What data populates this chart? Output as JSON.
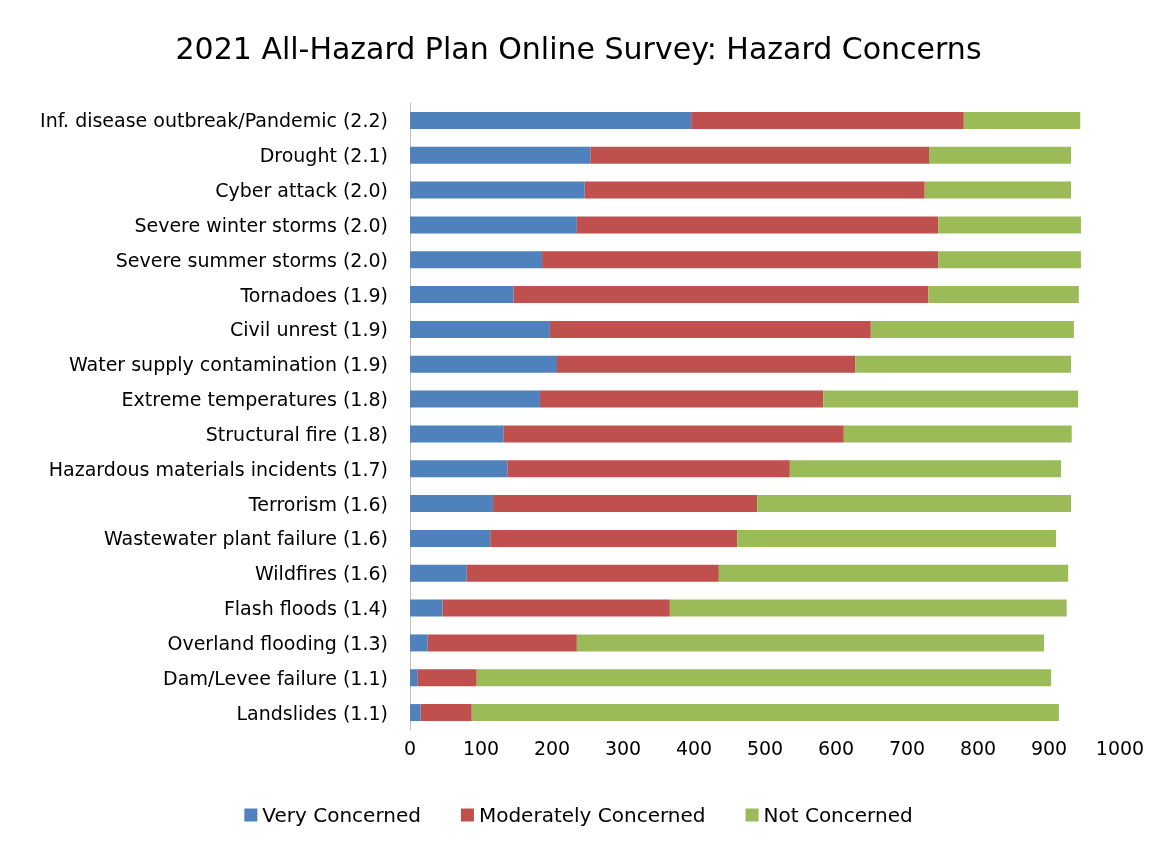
{
  "chart_data": {
    "type": "bar",
    "title": "2021 All-Hazard Plan Online Survey: Hazard Concerns",
    "orientation": "horizontal",
    "stacked": true,
    "categories": [
      "Inf. disease outbreak/Pandemic (2.2)",
      "Drought (2.1)",
      "Cyber attack (2.0)",
      "Severe winter storms (2.0)",
      "Severe summer storms (2.0)",
      "Tornadoes (1.9)",
      "Civil unrest (1.9)",
      "Water supply contamination (1.9)",
      "Extreme temperatures (1.8)",
      "Structural fire (1.8)",
      "Hazardous materials incidents (1.7)",
      "Terrorism (1.6)",
      "Wastewater plant failure (1.6)",
      "Wildfires (1.6)",
      "Flash floods (1.4)",
      "Overland flooding (1.3)",
      "Dam/Levee failure (1.1)",
      "Landslides (1.1)"
    ],
    "series": [
      {
        "name": "Very Concerned",
        "color": "#4f81bd",
        "values": [
          396,
          254,
          246,
          235,
          186,
          146,
          197,
          207,
          183,
          132,
          137,
          117,
          113,
          80,
          46,
          25,
          11,
          15
        ]
      },
      {
        "name": "Moderately Concerned",
        "color": "#c0504d",
        "values": [
          384,
          477,
          479,
          509,
          558,
          584,
          452,
          420,
          399,
          479,
          398,
          372,
          348,
          355,
          320,
          210,
          83,
          72
        ]
      },
      {
        "name": "Not Concerned",
        "color": "#9bbb59",
        "values": [
          164,
          200,
          206,
          201,
          201,
          212,
          286,
          304,
          359,
          321,
          382,
          442,
          449,
          492,
          559,
          658,
          809,
          827
        ]
      }
    ],
    "xlim": [
      0,
      1000
    ],
    "xticks": [
      0,
      100,
      200,
      300,
      400,
      500,
      600,
      700,
      800,
      900,
      1000
    ],
    "grid": false,
    "legend": "bottom"
  }
}
